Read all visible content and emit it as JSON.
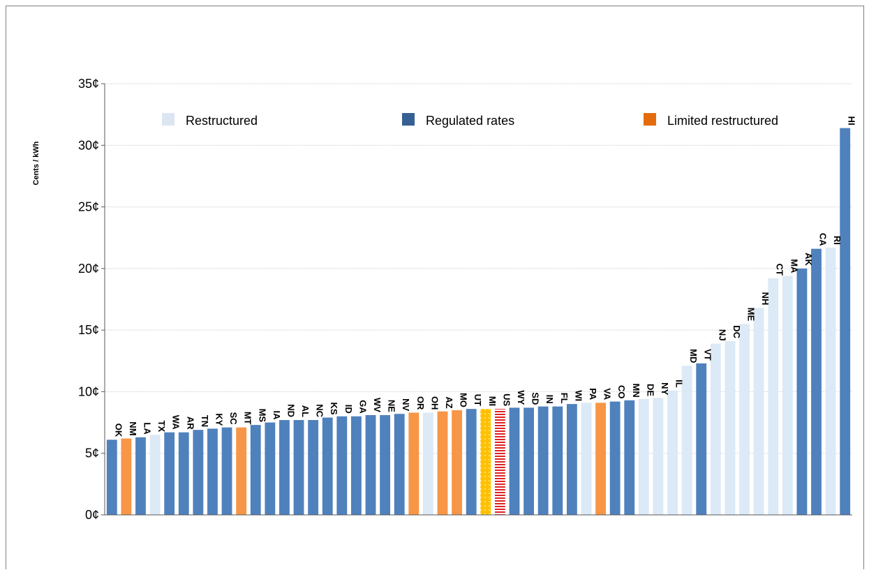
{
  "chart_data": {
    "type": "bar",
    "title": "",
    "xlabel": "",
    "ylabel": "Cents / kWh",
    "ylim": [
      0,
      35
    ],
    "yticks": [
      0,
      5,
      10,
      15,
      20,
      25,
      30,
      35
    ],
    "ytick_labels": [
      "0¢",
      "5¢",
      "10¢",
      "15¢",
      "20¢",
      "25¢",
      "30¢",
      "35¢"
    ],
    "grid": true,
    "legend_position": "top",
    "legend": [
      {
        "key": "restructured",
        "label": "Restructured",
        "color": "#dce6f2"
      },
      {
        "key": "regulated",
        "label": "Regulated rates",
        "color": "#376092"
      },
      {
        "key": "limited",
        "label": "Limited restructured",
        "color": "#e46c0a"
      }
    ],
    "bar_colors": {
      "restructured": "#dce9f6",
      "regulated": "#4f81bd",
      "limited": "#f79646",
      "MI": "#ffc000",
      "US": "#e02020"
    },
    "categories": [
      "OK",
      "NM",
      "LA",
      "TX",
      "WA",
      "AR",
      "TN",
      "KY",
      "SC",
      "MT",
      "MS",
      "IA",
      "ND",
      "AL",
      "NC",
      "KS",
      "ID",
      "GA",
      "WV",
      "NE",
      "NV",
      "OR",
      "OH",
      "AZ",
      "MO",
      "UT",
      "MI",
      "US",
      "WY",
      "SD",
      "IN",
      "FL",
      "WI",
      "PA",
      "VA",
      "CO",
      "MN",
      "DE",
      "NY",
      "IL",
      "MD",
      "VT",
      "NJ",
      "DC",
      "ME",
      "NH",
      "CT",
      "MA",
      "AK",
      "CA",
      "RI",
      "HI"
    ],
    "values": [
      6.1,
      6.2,
      6.3,
      6.5,
      6.7,
      6.7,
      6.9,
      7.0,
      7.1,
      7.1,
      7.3,
      7.5,
      7.7,
      7.7,
      7.7,
      7.9,
      8.0,
      8.0,
      8.1,
      8.1,
      8.2,
      8.3,
      8.3,
      8.4,
      8.5,
      8.6,
      8.6,
      8.6,
      8.7,
      8.7,
      8.8,
      8.8,
      9.0,
      9.1,
      9.1,
      9.2,
      9.3,
      9.4,
      9.5,
      10.1,
      12.1,
      12.3,
      13.9,
      14.1,
      15.5,
      16.8,
      19.2,
      19.4,
      20.0,
      21.6,
      21.7,
      31.4
    ],
    "groups": [
      "regulated",
      "limited",
      "regulated",
      "restructured",
      "regulated",
      "regulated",
      "regulated",
      "regulated",
      "regulated",
      "limited",
      "regulated",
      "regulated",
      "regulated",
      "regulated",
      "regulated",
      "regulated",
      "regulated",
      "regulated",
      "regulated",
      "regulated",
      "regulated",
      "limited",
      "restructured",
      "limited",
      "limited",
      "regulated",
      "MI",
      "US",
      "regulated",
      "regulated",
      "regulated",
      "regulated",
      "regulated",
      "restructured",
      "limited",
      "regulated",
      "regulated",
      "restructured",
      "restructured",
      "restructured",
      "restructured",
      "regulated",
      "restructured",
      "restructured",
      "restructured",
      "restructured",
      "restructured",
      "restructured",
      "regulated",
      "regulated",
      "restructured",
      "regulated"
    ]
  }
}
